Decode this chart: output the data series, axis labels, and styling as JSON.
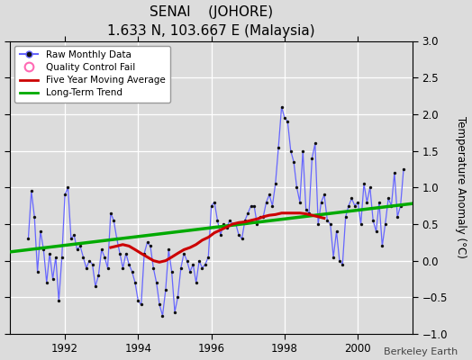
{
  "title": "SENAI    (JOHORE)",
  "subtitle": "1.633 N, 103.667 E (Malaysia)",
  "ylabel": "Temperature Anomaly (°C)",
  "credit": "Berkeley Earth",
  "ylim": [
    -1,
    3
  ],
  "yticks": [
    -1,
    -0.5,
    0,
    0.5,
    1,
    1.5,
    2,
    2.5,
    3
  ],
  "xlim": [
    1990.5,
    2001.5
  ],
  "xticks": [
    1992,
    1994,
    1996,
    1998,
    2000
  ],
  "bg_color": "#dcdcdc",
  "plot_bg_color": "#dcdcdc",
  "raw_color": "#6666ff",
  "raw_marker_color": "#111111",
  "moving_avg_color": "#cc0000",
  "trend_color": "#00aa00",
  "raw_data_x": [
    1991.0,
    1991.083,
    1991.167,
    1991.25,
    1991.333,
    1991.417,
    1991.5,
    1991.583,
    1991.667,
    1991.75,
    1991.833,
    1991.917,
    1992.0,
    1992.083,
    1992.167,
    1992.25,
    1992.333,
    1992.417,
    1992.5,
    1992.583,
    1992.667,
    1992.75,
    1992.833,
    1992.917,
    1993.0,
    1993.083,
    1993.167,
    1993.25,
    1993.333,
    1993.417,
    1993.5,
    1993.583,
    1993.667,
    1993.75,
    1993.833,
    1993.917,
    1994.0,
    1994.083,
    1994.167,
    1994.25,
    1994.333,
    1994.417,
    1994.5,
    1994.583,
    1994.667,
    1994.75,
    1994.833,
    1994.917,
    1995.0,
    1995.083,
    1995.167,
    1995.25,
    1995.333,
    1995.417,
    1995.5,
    1995.583,
    1995.667,
    1995.75,
    1995.833,
    1995.917,
    1996.0,
    1996.083,
    1996.167,
    1996.25,
    1996.333,
    1996.417,
    1996.5,
    1996.583,
    1996.667,
    1996.75,
    1996.833,
    1996.917,
    1997.0,
    1997.083,
    1997.167,
    1997.25,
    1997.333,
    1997.417,
    1997.5,
    1997.583,
    1997.667,
    1997.75,
    1997.833,
    1997.917,
    1998.0,
    1998.083,
    1998.167,
    1998.25,
    1998.333,
    1998.417,
    1998.5,
    1998.583,
    1998.667,
    1998.75,
    1998.833,
    1998.917,
    1999.0,
    1999.083,
    1999.167,
    1999.25,
    1999.333,
    1999.417,
    1999.5,
    1999.583,
    1999.667,
    1999.75,
    1999.833,
    1999.917,
    2000.0,
    2000.083,
    2000.167,
    2000.25,
    2000.333,
    2000.417,
    2000.5,
    2000.583,
    2000.667,
    2000.75,
    2000.833,
    2000.917,
    2001.0,
    2001.083,
    2001.167,
    2001.25
  ],
  "raw_data_y": [
    0.3,
    0.95,
    0.6,
    -0.15,
    0.4,
    0.15,
    -0.3,
    0.1,
    -0.25,
    0.05,
    -0.55,
    0.05,
    0.9,
    1.0,
    0.3,
    0.35,
    0.15,
    0.2,
    0.05,
    -0.1,
    0.0,
    -0.05,
    -0.35,
    -0.2,
    0.15,
    0.05,
    -0.1,
    0.65,
    0.55,
    0.3,
    0.1,
    -0.1,
    0.1,
    -0.05,
    -0.15,
    -0.3,
    -0.55,
    -0.6,
    0.1,
    0.25,
    0.2,
    -0.1,
    -0.3,
    -0.6,
    -0.75,
    -0.4,
    0.15,
    -0.15,
    -0.7,
    -0.5,
    -0.1,
    0.1,
    0.0,
    -0.15,
    -0.05,
    -0.3,
    0.0,
    -0.1,
    -0.05,
    0.05,
    0.75,
    0.8,
    0.55,
    0.35,
    0.5,
    0.45,
    0.55,
    0.5,
    0.5,
    0.35,
    0.3,
    0.55,
    0.65,
    0.75,
    0.75,
    0.5,
    0.6,
    0.6,
    0.8,
    0.9,
    0.75,
    1.05,
    1.55,
    2.1,
    1.95,
    1.9,
    1.5,
    1.35,
    1.0,
    0.8,
    1.5,
    0.7,
    0.65,
    1.4,
    1.6,
    0.5,
    0.8,
    0.9,
    0.55,
    0.5,
    0.05,
    0.4,
    0.0,
    -0.05,
    0.6,
    0.75,
    0.85,
    0.75,
    0.8,
    0.5,
    1.05,
    0.8,
    1.0,
    0.55,
    0.4,
    0.8,
    0.2,
    0.5,
    0.85,
    0.75,
    1.2,
    0.6,
    0.75,
    1.25
  ],
  "trend_x": [
    1990.5,
    2001.5
  ],
  "trend_y": [
    0.12,
    0.78
  ],
  "moving_avg_x": [
    1993.25,
    1993.42,
    1993.58,
    1993.75,
    1993.92,
    1994.08,
    1994.25,
    1994.42,
    1994.58,
    1994.75,
    1994.92,
    1995.08,
    1995.25,
    1995.42,
    1995.58,
    1995.75,
    1995.92,
    1996.08,
    1996.25,
    1996.42,
    1996.58,
    1996.75,
    1996.92,
    1997.08,
    1997.25,
    1997.42,
    1997.58,
    1997.75,
    1997.92,
    1998.08,
    1998.25,
    1998.42,
    1998.58,
    1998.75,
    1998.92,
    1999.08
  ],
  "moving_avg_y": [
    0.18,
    0.2,
    0.22,
    0.2,
    0.15,
    0.1,
    0.05,
    0.0,
    -0.02,
    0.0,
    0.05,
    0.1,
    0.15,
    0.18,
    0.22,
    0.28,
    0.32,
    0.38,
    0.42,
    0.46,
    0.5,
    0.52,
    0.53,
    0.55,
    0.57,
    0.6,
    0.62,
    0.63,
    0.65,
    0.65,
    0.65,
    0.65,
    0.64,
    0.62,
    0.6,
    0.58
  ]
}
